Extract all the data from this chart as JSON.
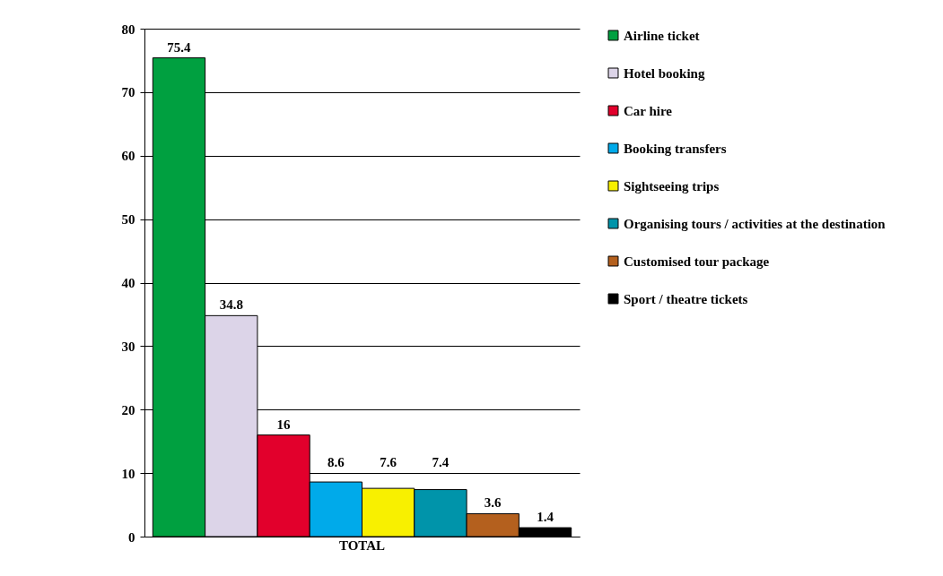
{
  "chart_data": {
    "type": "bar",
    "categories": [
      "TOTAL"
    ],
    "series": [
      {
        "name": "Airline ticket",
        "color": "#00a040",
        "values": [
          75.4
        ]
      },
      {
        "name": "Hotel booking",
        "color": "#dcd4e8",
        "values": [
          34.8
        ]
      },
      {
        "name": "Car hire",
        "color": "#e2002c",
        "values": [
          16
        ]
      },
      {
        "name": "Booking transfers",
        "color": "#00aaea",
        "values": [
          8.6
        ]
      },
      {
        "name": "Sightseeing trips",
        "color": "#f8f000",
        "values": [
          7.6
        ]
      },
      {
        "name": "Organising tours / activities at the destination",
        "color": "#0094aa",
        "values": [
          7.4
        ]
      },
      {
        "name": "Customised tour package",
        "color": "#b4601e",
        "values": [
          3.6
        ]
      },
      {
        "name": "Sport / theatre tickets",
        "color": "#000000",
        "values": [
          1.4
        ]
      }
    ],
    "ylim": [
      0,
      80
    ],
    "yticks": [
      0,
      10,
      20,
      30,
      40,
      50,
      60,
      70,
      80
    ],
    "grid": "y",
    "legend": "right",
    "data_labels": true
  }
}
